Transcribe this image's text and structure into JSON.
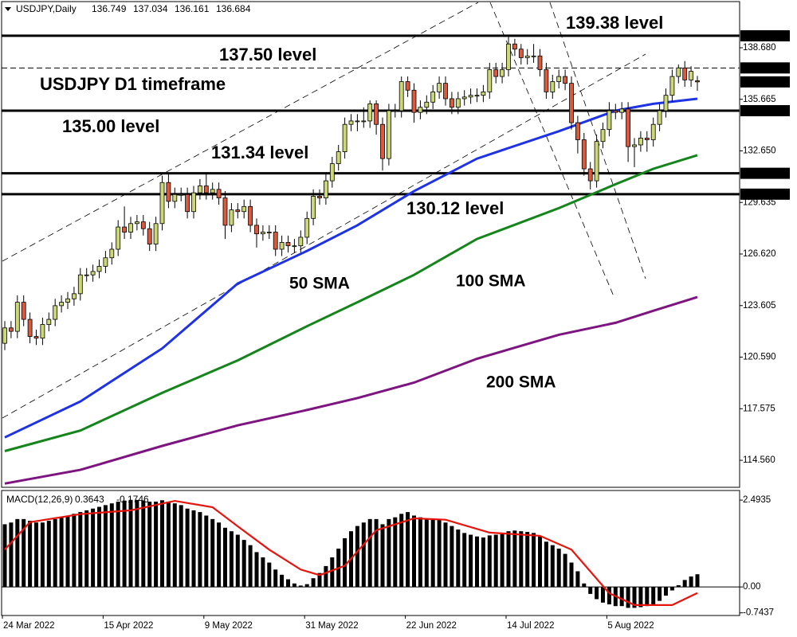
{
  "chart_data": {
    "type": "candlestick",
    "symbol": "USDJPY,Daily",
    "annotation": "USDJPY D1 timeframe",
    "categories": [
      "24 Mar 2022",
      null,
      null,
      null,
      null,
      null,
      null,
      null,
      null,
      null,
      null,
      null,
      null,
      null,
      null,
      null,
      "15 Apr 2022",
      null,
      null,
      null,
      null,
      null,
      null,
      null,
      null,
      null,
      null,
      null,
      null,
      null,
      null,
      null,
      "9 May 2022",
      null,
      null,
      null,
      null,
      null,
      null,
      null,
      null,
      null,
      null,
      null,
      null,
      null,
      null,
      null,
      "31 May 2022",
      null,
      null,
      null,
      null,
      null,
      null,
      null,
      null,
      null,
      null,
      null,
      null,
      null,
      null,
      null,
      "22 Jun 2022",
      null,
      null,
      null,
      null,
      null,
      null,
      null,
      null,
      null,
      null,
      null,
      null,
      null,
      null,
      null,
      "14 Jul 2022",
      null,
      null,
      null,
      null,
      null,
      null,
      null,
      null,
      null,
      null,
      null,
      null,
      null,
      null,
      null,
      "5 Aug 2022",
      null,
      null,
      null,
      null,
      null,
      null,
      null,
      null,
      null,
      null,
      null,
      null,
      null,
      null
    ],
    "open": [
      121.4,
      122.3,
      122.1,
      123.8,
      122.8,
      121.8,
      121.7,
      122.5,
      122.8,
      123.6,
      123.8,
      124.0,
      124.3,
      125.4,
      125.4,
      125.6,
      125.9,
      126.4,
      126.9,
      128.2,
      127.9,
      128.4,
      128.5,
      128.1,
      127.2,
      128.4,
      130.8,
      129.7,
      130.1,
      130.1,
      129.1,
      130.2,
      130.6,
      130.2,
      130.4,
      129.9,
      128.3,
      129.2,
      129.1,
      129.4,
      128.3,
      127.8,
      127.9,
      127.9,
      126.9,
      127.3,
      127.1,
      127.1,
      127.6,
      128.7,
      130.0,
      129.9,
      130.9,
      131.9,
      132.6,
      134.2,
      134.4,
      134.4,
      134.4,
      135.4,
      134.2,
      132.2,
      135.0,
      135.0,
      136.7,
      136.2,
      134.9,
      135.2,
      135.5,
      136.1,
      136.6,
      135.7,
      135.2,
      135.7,
      135.8,
      135.9,
      135.9,
      136.1,
      137.4,
      137.0,
      137.4,
      138.9,
      138.6,
      138.1,
      138.2,
      138.2,
      137.4,
      136.1,
      136.7,
      137.0,
      136.6,
      134.3,
      133.3,
      131.6,
      130.9,
      133.2,
      133.9,
      135.0,
      134.9,
      135.1,
      132.9,
      133.0,
      133.4,
      133.3,
      134.2,
      135.0,
      135.9,
      137.0,
      137.5,
      136.8,
      136.749
    ],
    "high": [
      122.7,
      122.7,
      124.2,
      124.2,
      123.2,
      122.2,
      122.9,
      123.2,
      124.0,
      124.2,
      124.4,
      124.7,
      125.8,
      125.8,
      126.0,
      126.3,
      126.8,
      127.3,
      128.6,
      129.4,
      128.8,
      128.9,
      128.9,
      128.5,
      128.8,
      131.2,
      131.3,
      130.5,
      130.5,
      130.5,
      130.6,
      131.0,
      131.3,
      130.8,
      130.8,
      130.3,
      129.6,
      129.6,
      129.8,
      129.8,
      128.7,
      128.3,
      128.3,
      128.3,
      127.7,
      127.7,
      127.5,
      128.0,
      129.1,
      130.4,
      130.4,
      131.3,
      132.3,
      133.0,
      134.6,
      134.8,
      134.8,
      135.2,
      135.6,
      135.6,
      134.6,
      135.4,
      135.4,
      137.0,
      137.0,
      136.6,
      135.6,
      135.9,
      136.5,
      137.0,
      137.0,
      136.1,
      136.1,
      136.2,
      136.3,
      136.3,
      136.5,
      137.8,
      137.8,
      137.8,
      139.38,
      139.2,
      138.9,
      138.6,
      138.9,
      138.6,
      137.8,
      137.1,
      137.4,
      137.4,
      137.0,
      134.7,
      133.7,
      132.0,
      133.6,
      134.3,
      135.5,
      135.4,
      135.5,
      135.5,
      133.4,
      133.8,
      133.8,
      134.6,
      135.4,
      136.3,
      137.4,
      137.7,
      137.9,
      137.6,
      137.034
    ],
    "low": [
      121.0,
      121.7,
      121.7,
      122.4,
      121.4,
      121.3,
      121.3,
      122.1,
      122.4,
      123.2,
      123.4,
      123.6,
      123.9,
      125.0,
      125.0,
      125.2,
      125.5,
      126.0,
      126.5,
      127.5,
      127.5,
      128.0,
      127.7,
      126.8,
      126.8,
      128.0,
      129.3,
      129.3,
      129.7,
      128.7,
      128.7,
      129.8,
      129.8,
      129.8,
      129.5,
      127.5,
      127.9,
      128.7,
      128.7,
      127.9,
      127.0,
      127.4,
      127.5,
      126.5,
      126.5,
      126.7,
      126.7,
      126.7,
      127.2,
      128.3,
      129.5,
      129.5,
      130.5,
      131.5,
      132.2,
      133.8,
      133.8,
      134.0,
      134.0,
      133.6,
      131.5,
      131.8,
      134.6,
      134.6,
      135.8,
      134.3,
      134.5,
      134.8,
      135.1,
      135.7,
      135.3,
      134.8,
      134.8,
      135.3,
      135.4,
      135.5,
      135.5,
      135.7,
      136.6,
      136.6,
      137.0,
      138.2,
      137.7,
      137.7,
      137.8,
      137.0,
      135.7,
      135.7,
      136.3,
      136.2,
      133.9,
      132.5,
      131.2,
      130.4,
      130.5,
      132.8,
      133.5,
      134.5,
      134.5,
      132.0,
      131.7,
      132.6,
      132.6,
      132.9,
      133.8,
      134.6,
      135.5,
      136.6,
      136.4,
      136.4,
      136.161
    ],
    "close": [
      122.3,
      122.1,
      123.8,
      122.8,
      121.8,
      121.7,
      122.5,
      122.8,
      123.6,
      123.8,
      124.0,
      124.3,
      125.4,
      125.4,
      125.6,
      125.9,
      126.4,
      126.9,
      128.2,
      127.9,
      128.4,
      128.5,
      128.1,
      127.2,
      128.4,
      130.8,
      129.7,
      130.1,
      130.1,
      129.1,
      130.2,
      130.6,
      130.2,
      130.4,
      129.9,
      128.3,
      129.2,
      129.1,
      129.4,
      128.3,
      127.8,
      127.9,
      127.9,
      126.9,
      127.3,
      127.1,
      127.1,
      127.6,
      128.7,
      130.0,
      129.9,
      130.9,
      131.9,
      132.6,
      134.2,
      134.4,
      134.4,
      134.4,
      135.4,
      134.2,
      132.2,
      135.0,
      135.0,
      136.7,
      136.2,
      134.9,
      135.2,
      135.5,
      136.1,
      136.6,
      135.7,
      135.2,
      135.7,
      135.8,
      135.9,
      135.9,
      136.1,
      137.4,
      137.0,
      137.4,
      138.9,
      138.6,
      138.1,
      138.2,
      138.2,
      137.4,
      136.1,
      136.7,
      137.0,
      136.6,
      134.3,
      133.3,
      131.6,
      130.9,
      133.2,
      133.9,
      135.0,
      134.9,
      135.1,
      132.9,
      133.0,
      133.4,
      133.3,
      134.2,
      135.0,
      135.9,
      137.0,
      137.5,
      136.8,
      137.3,
      136.684
    ],
    "up_color": "#cbd874",
    "down_color": "#dc5a3c",
    "ylim": [
      112.98,
      140.82
    ],
    "yticks": [
      {
        "value": 138.68,
        "label": "138.680"
      },
      135.665,
      {
        "value": 132.65,
        "label": "132.650"
      },
      129.635,
      {
        "value": 126.62,
        "label": "126.620"
      },
      123.605,
      {
        "value": 120.59,
        "label": "120.590"
      },
      117.575,
      {
        "value": 114.56,
        "label": "114.560"
      }
    ],
    "levels": [
      {
        "value": 139.38,
        "label": "139.380",
        "line": "solid",
        "note": "139.38 level"
      },
      {
        "value": 137.5,
        "label": "137.500",
        "line": "dashed",
        "note": "137.50 level"
      },
      {
        "value": 135,
        "label": "135.000",
        "line": "solid",
        "note": "135.00 level"
      },
      {
        "value": 131.34,
        "label": "131.340",
        "line": "solid",
        "note": "131.34 level"
      },
      {
        "value": 130.12,
        "label": "130.120",
        "line": "solid",
        "note": "130.12 level"
      }
    ],
    "series": [
      {
        "name": "50 SMA",
        "color": "#1e32e6",
        "x": [
          0,
          12,
          25,
          37,
          48,
          56,
          65,
          75,
          88,
          97,
          103,
          110
        ],
        "values": [
          115.9,
          118.0,
          121.1,
          124.9,
          126.8,
          128.3,
          130.3,
          132.2,
          133.8,
          135.0,
          135.4,
          135.7
        ]
      },
      {
        "name": "100 SMA",
        "color": "#14851a",
        "x": [
          0,
          12,
          25,
          37,
          48,
          56,
          65,
          75,
          88,
          97,
          103,
          110
        ],
        "values": [
          115.1,
          116.3,
          118.5,
          120.4,
          122.4,
          123.8,
          125.4,
          127.5,
          129.3,
          130.7,
          131.6,
          132.4
        ]
      },
      {
        "name": "200 SMA",
        "color": "#7d1480",
        "x": [
          0,
          12,
          25,
          37,
          48,
          56,
          65,
          75,
          88,
          97,
          103,
          110
        ],
        "values": [
          113.2,
          114.0,
          115.4,
          116.6,
          117.5,
          118.2,
          119.1,
          120.5,
          121.9,
          122.6,
          123.3,
          124.1
        ]
      }
    ],
    "macd": {
      "title": "MACD(12,26,9)",
      "ylim": [
        -0.82,
        2.77
      ],
      "yticks": [
        2.4935,
        {
          "value": 0,
          "label": "0.00"
        },
        -0.7437
      ],
      "histogram": {
        "color": "#000000",
        "values": [
          1.8,
          1.85,
          1.95,
          1.95,
          1.9,
          1.85,
          1.85,
          1.9,
          1.95,
          2.0,
          2.05,
          2.1,
          2.15,
          2.2,
          2.25,
          2.3,
          2.35,
          2.4,
          2.45,
          2.48,
          2.5,
          2.5,
          2.48,
          2.45,
          2.45,
          2.49,
          2.45,
          2.4,
          2.35,
          2.25,
          2.2,
          2.15,
          2.05,
          1.95,
          1.85,
          1.7,
          1.6,
          1.5,
          1.35,
          1.2,
          1.0,
          0.85,
          0.7,
          0.5,
          0.35,
          0.22,
          0.1,
          0.04,
          0.08,
          0.25,
          0.4,
          0.6,
          0.85,
          1.1,
          1.4,
          1.6,
          1.75,
          1.85,
          1.95,
          1.95,
          1.8,
          1.95,
          2.0,
          2.1,
          2.15,
          2.05,
          2.0,
          1.95,
          1.95,
          1.95,
          1.85,
          1.75,
          1.65,
          1.55,
          1.5,
          1.45,
          1.42,
          1.48,
          1.5,
          1.52,
          1.6,
          1.62,
          1.6,
          1.58,
          1.55,
          1.45,
          1.3,
          1.2,
          1.1,
          0.95,
          0.7,
          0.45,
          0.1,
          -0.2,
          -0.35,
          -0.45,
          -0.5,
          -0.55,
          -0.55,
          -0.6,
          -0.6,
          -0.58,
          -0.55,
          -0.5,
          -0.4,
          -0.25,
          -0.1,
          0.05,
          0.2,
          0.3,
          0.3643
        ]
      },
      "signal": {
        "color": "#e8140c",
        "x": [
          0,
          4,
          12,
          20,
          27,
          33,
          37,
          42,
          47,
          50,
          54,
          59,
          65,
          70,
          77,
          85,
          90,
          96,
          100,
          106,
          110
        ],
        "values": [
          1.07,
          1.86,
          2.09,
          2.2,
          2.47,
          2.29,
          1.74,
          1.07,
          0.5,
          0.34,
          0.61,
          1.63,
          1.97,
          1.93,
          1.56,
          1.47,
          1.07,
          -0.18,
          -0.52,
          -0.52,
          -0.1746
        ]
      }
    }
  }
}
